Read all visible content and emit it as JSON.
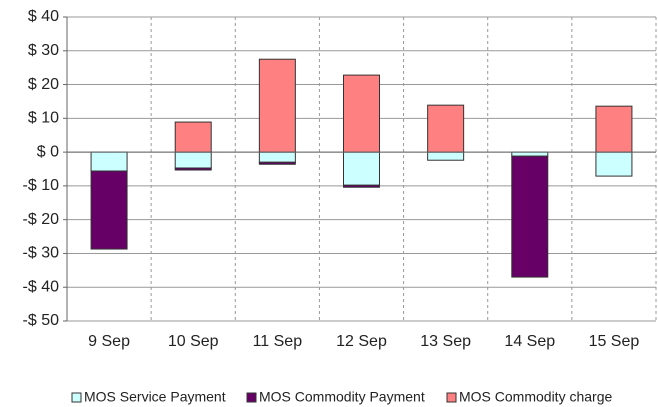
{
  "chart_data": {
    "type": "stacked-bar",
    "categories": [
      "9 Sep",
      "10 Sep",
      "11 Sep",
      "12 Sep",
      "13 Sep",
      "14 Sep",
      "15 Sep"
    ],
    "series": [
      {
        "name": "MOS Service Payment",
        "color": "#ccffff",
        "values": [
          -5.6,
          -4.7,
          -3,
          -9.8,
          -2.4,
          -1.2,
          -7.1
        ]
      },
      {
        "name": "MOS Commodity Payment",
        "color": "#660066",
        "values": [
          -23.1,
          -0.6,
          -0.6,
          -0.6,
          0,
          -35.8,
          0
        ]
      },
      {
        "name": "MOS Commodity charge",
        "color": "#ff8080",
        "values": [
          0,
          8.9,
          27.5,
          22.8,
          13.9,
          0,
          13.6
        ]
      }
    ],
    "ylim": [
      -50,
      40
    ],
    "yticks": [
      {
        "value": 40,
        "label": "$ 40"
      },
      {
        "value": 30,
        "label": "$ 30"
      },
      {
        "value": 20,
        "label": "$ 20"
      },
      {
        "value": 10,
        "label": "$ 10"
      },
      {
        "value": 0,
        "label": "$ 0"
      },
      {
        "value": -10,
        "label": "-$ 10"
      },
      {
        "value": -20,
        "label": "-$ 20"
      },
      {
        "value": -30,
        "label": "-$ 30"
      },
      {
        "value": -40,
        "label": "-$ 40"
      },
      {
        "value": -50,
        "label": "-$ 50"
      }
    ],
    "grid": true,
    "legend": "bottom"
  }
}
